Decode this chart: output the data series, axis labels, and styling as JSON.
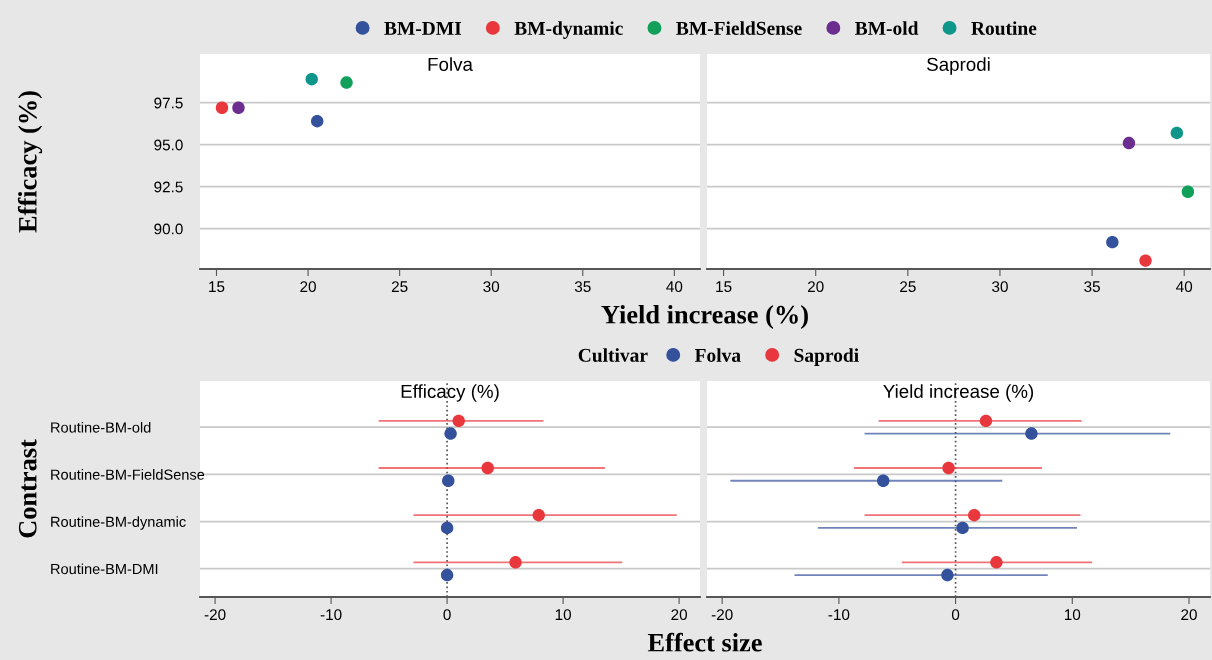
{
  "chart_data": [
    {
      "type": "scatter",
      "title": "Folva",
      "xlabel": "Yield increase (%)",
      "ylabel": "Efficacy (%)",
      "legend": "top",
      "grid": "y",
      "marker": "circle",
      "xlim": [
        14.1,
        41.4
      ],
      "xticks": [
        15,
        20,
        25,
        30,
        35,
        40
      ],
      "ylim": [
        87.6,
        100.4
      ],
      "yticks": [
        {
          "value": 90,
          "label": "90.0"
        },
        {
          "value": 92.5,
          "label": "92.5"
        },
        {
          "value": 95,
          "label": "95.0"
        },
        {
          "value": 97.5,
          "label": "97.5"
        }
      ],
      "series": [
        {
          "name": "BM-DMI",
          "color": "#34519c",
          "x": [
            20.5
          ],
          "values": [
            96.4
          ]
        },
        {
          "name": "BM-dynamic",
          "color": "#e8383d",
          "x": [
            15.3
          ],
          "values": [
            97.2
          ]
        },
        {
          "name": "BM-FieldSense",
          "color": "#11a05a",
          "x": [
            22.1
          ],
          "values": [
            98.7
          ]
        },
        {
          "name": "BM-old",
          "color": "#6b2d8f",
          "x": [
            16.2
          ],
          "values": [
            97.2
          ]
        },
        {
          "name": "Routine",
          "color": "#0f968a",
          "x": [
            20.2
          ],
          "values": [
            98.9
          ]
        }
      ]
    },
    {
      "type": "scatter",
      "title": "Saprodi",
      "grid": "y",
      "marker": "circle",
      "tick_labels": "x",
      "xlim": [
        14.1,
        41.4
      ],
      "xticks": [
        15,
        20,
        25,
        30,
        35,
        40
      ],
      "ylim": [
        87.6,
        100.4
      ],
      "yticks": [
        90,
        92.5,
        95,
        97.5
      ],
      "series": [
        {
          "color": "#34519c",
          "x": [
            36.1
          ],
          "values": [
            89.2
          ]
        },
        {
          "color": "#e8383d",
          "x": [
            37.9
          ],
          "values": [
            88.1
          ]
        },
        {
          "color": "#11a05a",
          "x": [
            40.2
          ],
          "values": [
            92.2
          ]
        },
        {
          "color": "#6b2d8f",
          "x": [
            37.0
          ],
          "values": [
            95.1
          ]
        },
        {
          "color": "#0f968a",
          "x": [
            39.6
          ],
          "values": [
            95.7
          ]
        }
      ]
    },
    {
      "type": "scatter",
      "orientation": "horizontal",
      "title": "Efficacy (%)",
      "xlabel": "Effect size",
      "ylabel": "Contrast",
      "legend_title": "Cultivar",
      "legend": "top",
      "grid": "y",
      "marker": "circle",
      "categories": [
        "Routine-BM-old",
        "Routine-BM-FieldSense",
        "Routine-BM-dynamic",
        "Routine-BM-DMI"
      ],
      "xlim": [
        -21.3,
        21.8
      ],
      "xticks": [
        -20,
        -10,
        0,
        10,
        20
      ],
      "ref_lines": [
        {
          "axis": "x",
          "value": 0,
          "color": "#555555",
          "line_style": "dotted"
        }
      ],
      "series": [
        {
          "name": "Folva",
          "color": "#34519c",
          "values": [
            0.3,
            0.1,
            0,
            0
          ]
        },
        {
          "name": "Saprodi",
          "color": "#e8383d",
          "values": [
            1.0,
            3.5,
            7.9,
            5.9
          ],
          "errors": [
            [
              -5.9,
              8.3
            ],
            [
              -5.9,
              13.6
            ],
            [
              -2.9,
              19.8
            ],
            [
              -2.9,
              15.1
            ]
          ]
        }
      ]
    },
    {
      "type": "scatter",
      "orientation": "horizontal",
      "title": "Yield increase (%)",
      "grid": "y",
      "marker": "circle",
      "tick_labels": "x",
      "categories": [
        null,
        null,
        null,
        null
      ],
      "xlim": [
        -21.3,
        21.8
      ],
      "xticks": [
        -20,
        -10,
        0,
        10,
        20
      ],
      "ref_lines": [
        {
          "axis": "x",
          "value": 0,
          "color": "#555555",
          "line_style": "dotted"
        }
      ],
      "series": [
        {
          "color": "#34519c",
          "values": [
            6.5,
            -6.2,
            0.6,
            -0.7
          ],
          "errors": [
            [
              -7.8,
              18.4
            ],
            [
              -19.3,
              4.0
            ],
            [
              -11.8,
              10.4
            ],
            [
              -13.8,
              7.9
            ]
          ]
        },
        {
          "color": "#e8383d",
          "values": [
            2.6,
            -0.6,
            1.6,
            3.5
          ],
          "errors": [
            [
              -6.6,
              10.8
            ],
            [
              -8.7,
              7.4
            ],
            [
              -7.8,
              10.7
            ],
            [
              -4.6,
              11.7
            ]
          ]
        }
      ]
    }
  ]
}
